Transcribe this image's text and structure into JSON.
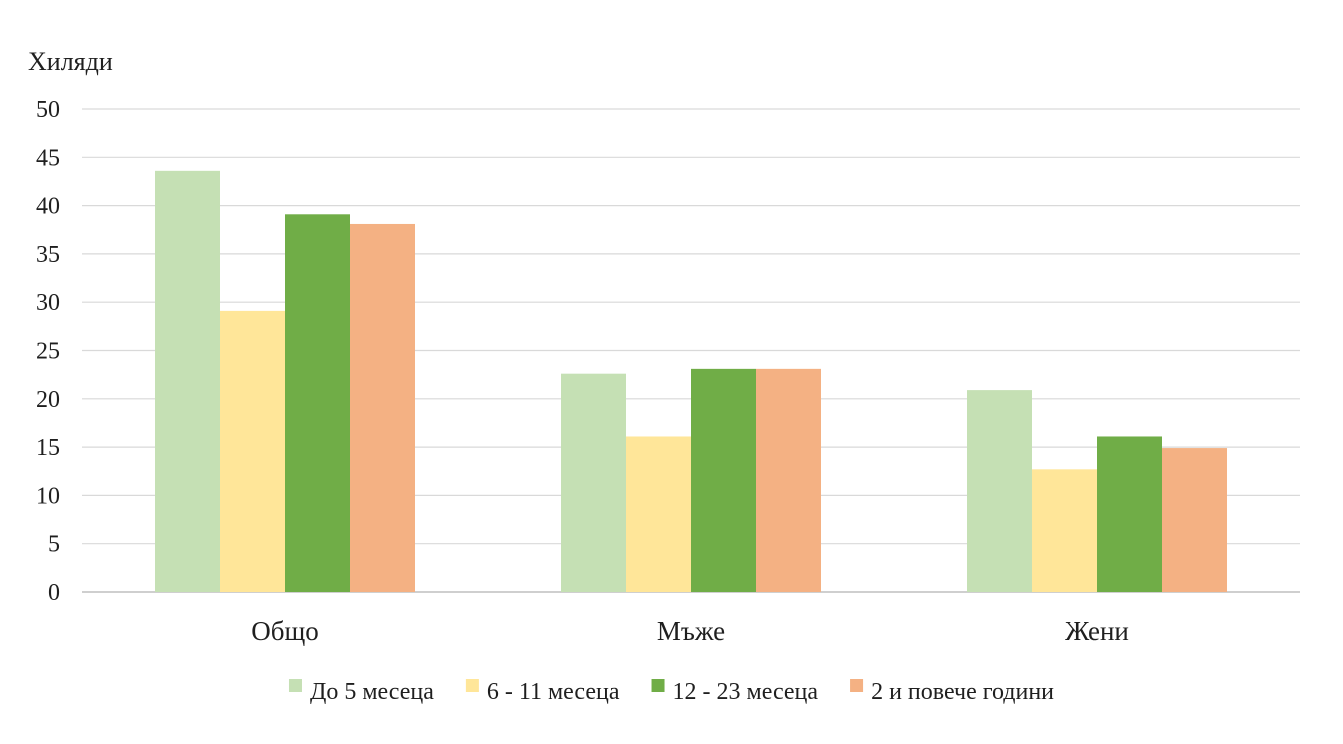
{
  "chart_data": {
    "type": "bar",
    "ylabel": "Хиляди",
    "categories": [
      "Общо",
      "Мъже",
      "Жени"
    ],
    "series": [
      {
        "name": "До 5 месеца",
        "color": "#c5e0b4",
        "values": [
          43.6,
          22.6,
          20.9
        ]
      },
      {
        "name": "6 - 11 месеца",
        "color": "#ffe699",
        "values": [
          29.1,
          16.1,
          12.7
        ]
      },
      {
        "name": "12 - 23 месеца",
        "color": "#70ad47",
        "values": [
          39.1,
          23.1,
          16.1
        ]
      },
      {
        "name": "2 и повече години",
        "color": "#f4b183",
        "values": [
          38.1,
          23.1,
          14.9
        ]
      }
    ],
    "ylim": [
      0,
      50
    ],
    "yticks": [
      0,
      5,
      10,
      15,
      20,
      25,
      30,
      35,
      40,
      45,
      50
    ],
    "grid": true,
    "legend": "bottom"
  }
}
